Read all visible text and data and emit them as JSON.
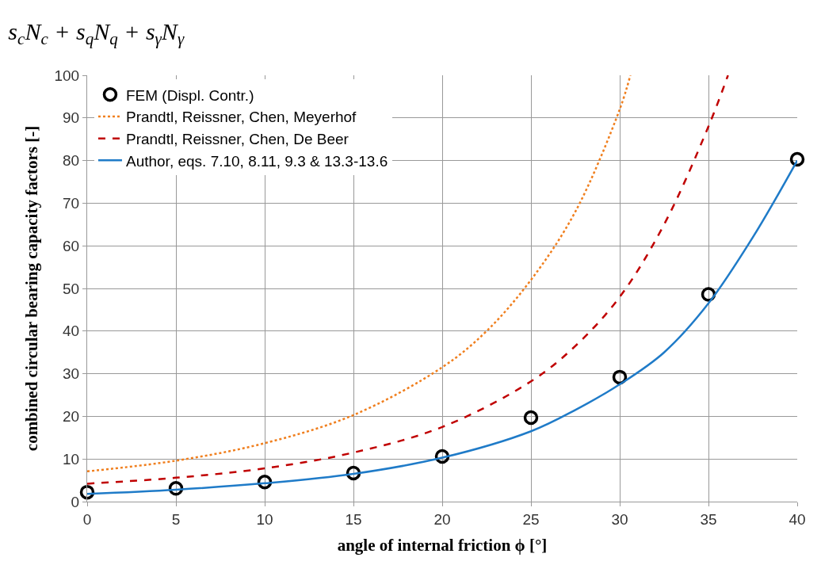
{
  "chart_data": {
    "type": "line",
    "title": "s$_{c}$N$_{c}$ + s$_{q}$N$_{q}$ + s$_{γ}$N$_{γ}$",
    "xlabel": "angle of internal friction ϕ [°]",
    "ylabel": "combined circular bearing capacity factors [-]",
    "xlim": [
      0,
      40
    ],
    "xticks": [
      0,
      5,
      10,
      15,
      20,
      25,
      30,
      35,
      40
    ],
    "ylim": [
      0,
      100
    ],
    "yticks": [
      0,
      10,
      20,
      30,
      40,
      50,
      60,
      70,
      80,
      90,
      100
    ],
    "grid": true,
    "legend": "top left",
    "series": [
      {
        "name": "FEM (Displ. Contr.)",
        "type": "scatter",
        "marker": "circle",
        "color": "#000000",
        "x": [
          0,
          5,
          10,
          15,
          20,
          25,
          30,
          35,
          40
        ],
        "values": [
          2.2,
          3.1,
          4.6,
          6.7,
          10.6,
          19.7,
          29.2,
          48.6,
          80.3
        ]
      },
      {
        "name": "Prandtl, Reissner, Chen, Meyerhof",
        "line_style": "dotted",
        "color": "#f07f1e",
        "x": [
          0,
          5,
          10,
          15,
          20,
          22.5,
          25,
          27.5,
          30,
          30.6
        ],
        "values": [
          7.1,
          9.6,
          13.7,
          20.3,
          31.5,
          40,
          52,
          68,
          92,
          100
        ]
      },
      {
        "name": "Prandtl, Reissner, Chen, De Beer",
        "line_style": "dashed",
        "color": "#c00000",
        "x": [
          0,
          5,
          10,
          15,
          20,
          25,
          27.5,
          30,
          32.5,
          35,
          36.1
        ],
        "values": [
          4.2,
          5.6,
          7.8,
          11.5,
          17.5,
          28.2,
          36.5,
          48,
          65,
          88,
          100
        ]
      },
      {
        "name": "Author, eqs. 7.10, 8.11, 9.3 & 13.3-13.6",
        "line_style": "solid",
        "color": "#1f7bc8",
        "x": [
          0,
          5,
          10,
          15,
          20,
          25,
          27.5,
          30,
          32.5,
          35,
          37.5,
          40
        ],
        "values": [
          1.8,
          2.8,
          4.3,
          6.5,
          10.3,
          16.5,
          21.5,
          27.5,
          35,
          46.5,
          62,
          80
        ]
      }
    ]
  }
}
